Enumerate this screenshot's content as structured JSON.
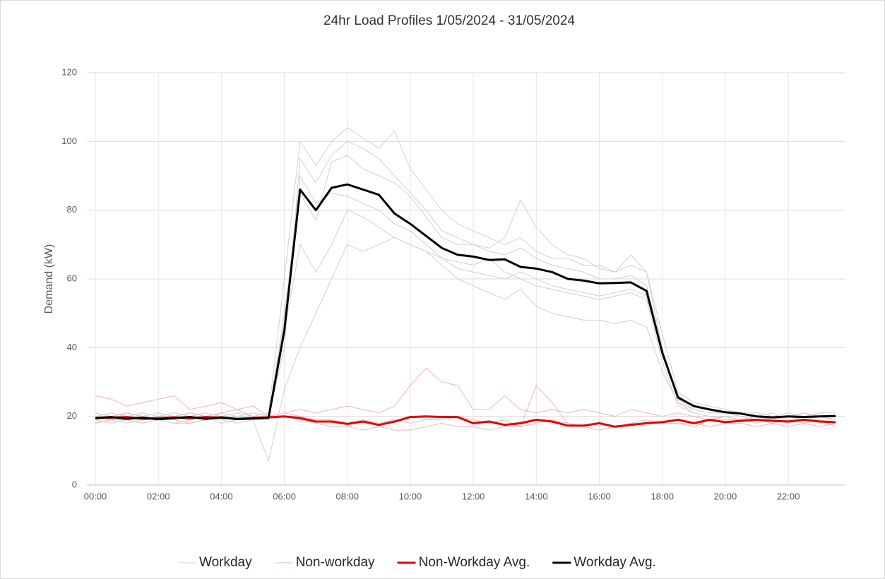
{
  "chart_data": {
    "type": "line",
    "title": "24hr Load Profiles 1/05/2024 - 31/05/2024",
    "ylabel": "Demand (kW)",
    "categories": [
      "00:00",
      null,
      null,
      null,
      "02:00",
      null,
      null,
      null,
      "04:00",
      null,
      null,
      null,
      "06:00",
      null,
      null,
      null,
      "08:00",
      null,
      null,
      null,
      "10:00",
      null,
      null,
      null,
      "12:00",
      null,
      null,
      null,
      "14:00",
      null,
      null,
      null,
      "16:00",
      null,
      null,
      null,
      "18:00",
      null,
      null,
      null,
      "20:00",
      null,
      null,
      null,
      "22:00",
      null,
      null,
      null
    ],
    "ylim": [
      0,
      120
    ],
    "yticks": [
      0,
      20,
      40,
      60,
      80,
      100,
      120
    ],
    "grid": true,
    "legend": "bottom",
    "series": [
      {
        "name": "Workday",
        "color": "#d0d0d0",
        "values": [
          [
            20,
            21,
            20,
            19,
            20,
            21,
            20,
            19,
            20,
            21,
            20,
            21,
            60,
            100,
            93,
            100,
            104,
            101,
            98,
            103,
            92,
            86,
            80,
            76,
            74,
            72,
            70,
            72,
            68,
            66,
            66,
            64,
            64,
            62,
            64,
            62,
            44,
            27,
            24,
            23,
            22,
            21,
            21,
            20,
            20,
            21,
            20,
            20
          ],
          [
            19,
            18,
            19,
            20,
            19,
            18,
            19,
            20,
            18,
            19,
            19,
            20,
            40,
            95,
            88,
            96,
            100,
            98,
            95,
            90,
            85,
            80,
            74,
            72,
            70,
            68,
            67,
            69,
            66,
            64,
            63,
            62,
            60,
            60,
            61,
            58,
            40,
            24,
            22,
            21,
            21,
            20,
            19,
            19,
            20,
            19,
            20,
            19
          ],
          [
            20,
            19,
            21,
            20,
            19,
            20,
            21,
            20,
            19,
            20,
            19,
            7,
            28,
            40,
            50,
            60,
            70,
            68,
            70,
            72,
            70,
            68,
            66,
            65,
            64,
            66,
            62,
            60,
            58,
            57,
            56,
            55,
            54,
            55,
            56,
            54,
            36,
            23,
            21,
            20,
            20,
            19,
            20,
            21,
            19,
            20,
            20,
            19
          ],
          [
            21,
            20,
            20,
            21,
            20,
            19,
            20,
            21,
            20,
            20,
            21,
            20,
            48,
            90,
            82,
            85,
            84,
            82,
            80,
            76,
            74,
            70,
            66,
            63,
            62,
            61,
            60,
            62,
            60,
            58,
            57,
            56,
            55,
            56,
            57,
            55,
            38,
            26,
            23,
            22,
            21,
            21,
            20,
            20,
            21,
            20,
            21,
            21
          ],
          [
            18,
            19,
            18,
            19,
            19,
            18,
            18,
            19,
            19,
            18,
            19,
            19,
            45,
            70,
            62,
            70,
            80,
            78,
            75,
            72,
            70,
            68,
            64,
            60,
            58,
            56,
            54,
            57,
            52,
            50,
            49,
            48,
            48,
            47,
            48,
            46,
            33,
            24,
            21,
            20,
            19,
            19,
            18,
            19,
            18,
            19,
            19,
            18
          ],
          [
            20,
            20,
            19,
            20,
            21,
            20,
            20,
            19,
            21,
            20,
            20,
            20,
            50,
            85,
            77,
            94,
            96,
            92,
            90,
            88,
            84,
            78,
            72,
            70,
            70,
            69,
            72,
            83,
            75,
            70,
            67,
            66,
            63,
            62,
            67,
            62,
            40,
            25,
            22,
            21,
            21,
            20,
            20,
            19,
            20,
            20,
            20,
            20
          ]
        ]
      },
      {
        "name": "Non-workday",
        "color": "#f6b3b3",
        "values": [
          [
            26,
            25,
            23,
            24,
            25,
            26,
            22,
            23,
            24,
            22,
            23,
            20,
            21,
            22,
            21,
            22,
            23,
            22,
            21,
            23,
            29,
            34,
            30,
            29,
            22,
            22,
            26,
            22,
            21,
            22,
            21,
            22,
            21,
            20,
            22,
            21,
            20,
            21,
            20,
            19,
            20,
            19,
            20,
            19,
            20,
            21,
            20,
            19
          ],
          [
            18,
            19,
            19,
            18,
            19,
            19,
            18,
            19,
            20,
            19,
            19,
            19,
            20,
            19,
            18,
            17,
            17,
            16,
            17,
            16,
            16,
            17,
            18,
            17,
            17,
            16,
            17,
            17,
            29,
            24,
            18,
            17,
            16,
            17,
            18,
            19,
            18,
            18,
            18,
            17,
            18,
            18,
            17,
            18,
            17,
            18,
            17,
            18
          ],
          [
            19,
            20,
            21,
            20,
            19,
            20,
            21,
            20,
            21,
            22,
            20,
            20,
            21,
            20,
            19,
            19,
            18,
            19,
            18,
            19,
            18,
            19,
            19,
            20,
            19,
            18,
            19,
            17,
            18,
            19,
            18,
            17,
            18,
            17,
            18,
            18,
            18,
            18,
            17,
            19,
            18,
            19,
            19,
            18,
            19,
            18,
            19,
            17
          ]
        ]
      },
      {
        "name": "Non-Workday Avg.",
        "color": "#e00000",
        "values": [
          19.5,
          19.6,
          19.8,
          19.3,
          19.5,
          19.7,
          19.4,
          19.8,
          19.6,
          19.3,
          19.5,
          19.7,
          20,
          19.5,
          18.5,
          18.5,
          17.8,
          18.5,
          17.5,
          18.5,
          19.8,
          20,
          19.8,
          19.8,
          18,
          18.5,
          17.5,
          18,
          19,
          18.5,
          17.3,
          17.3,
          18,
          17,
          17.5,
          18,
          18.3,
          19,
          18,
          19,
          18.3,
          18.7,
          19,
          18.7,
          18.5,
          19,
          18.5,
          18.3
        ]
      },
      {
        "name": "Workday Avg.",
        "color": "#000000",
        "values": [
          19.5,
          19.8,
          19.3,
          19.6,
          19.2,
          19.5,
          19.8,
          19.3,
          19.7,
          19.2,
          19.4,
          19.6,
          45,
          86,
          80,
          86.5,
          87.5,
          86,
          84.5,
          79,
          76,
          72.5,
          69,
          67,
          66.5,
          65.5,
          65.7,
          63.5,
          63,
          62,
          60,
          59.5,
          58.7,
          58.8,
          59,
          56.5,
          38.5,
          25.5,
          23,
          22,
          21.2,
          20.8,
          20,
          19.7,
          20,
          19.8,
          20,
          20.1
        ]
      }
    ]
  }
}
